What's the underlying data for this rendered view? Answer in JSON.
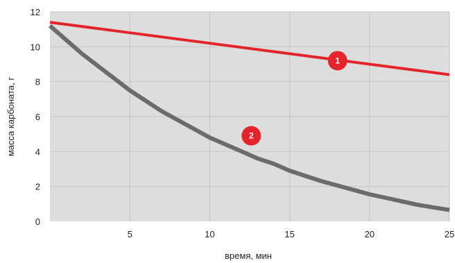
{
  "chart_data": {
    "type": "line",
    "xlabel": "время, мин",
    "ylabel": "масса карбоната, г",
    "xlim": [
      0,
      25
    ],
    "ylim": [
      0,
      12
    ],
    "x_ticks": [
      5,
      10,
      15,
      20,
      25
    ],
    "y_ticks": [
      0,
      2,
      4,
      6,
      8,
      10,
      12
    ],
    "grid": true,
    "colors": {
      "plot_background": "#dddddd",
      "grid": "#c4c4c4"
    },
    "series": [
      {
        "name": "1",
        "color": "#e3242b",
        "x": [
          0,
          5,
          10,
          15,
          20,
          25
        ],
        "y": [
          11.4,
          10.8,
          10.2,
          9.6,
          9.0,
          8.4
        ],
        "marker_at": [
          18,
          9.2
        ]
      },
      {
        "name": "2",
        "color": "#6b6b6b",
        "x": [
          0,
          1,
          2,
          3,
          4,
          5,
          6,
          7,
          8,
          9,
          10,
          11,
          12,
          13,
          14,
          15,
          16,
          17,
          18,
          19,
          20,
          21,
          22,
          23,
          24,
          25
        ],
        "y": [
          11.2,
          10.4,
          9.6,
          8.9,
          8.2,
          7.5,
          6.9,
          6.3,
          5.8,
          5.3,
          4.8,
          4.4,
          4.0,
          3.6,
          3.3,
          2.9,
          2.6,
          2.3,
          2.05,
          1.8,
          1.55,
          1.35,
          1.15,
          0.95,
          0.8,
          0.65
        ],
        "marker_at": [
          12.6,
          4.9
        ]
      }
    ]
  }
}
